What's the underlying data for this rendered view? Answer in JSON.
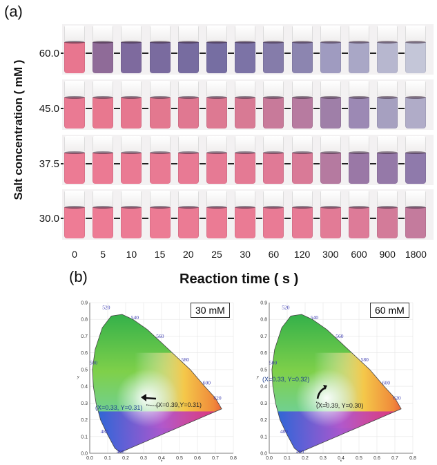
{
  "panel_a_label": "(a)",
  "panel_b_label": "(b)",
  "y_axis_label": "Salt concentration ( mM )",
  "x_axis_label": "Reaction time ( s )",
  "concentrations": [
    "60.0",
    "45.0",
    "37.5",
    "30.0"
  ],
  "times": [
    "0",
    "5",
    "10",
    "15",
    "20",
    "25",
    "30",
    "60",
    "120",
    "300",
    "600",
    "900",
    "1800"
  ],
  "vial_colors": [
    [
      "#e8768f",
      "#8f6b98",
      "#7e6a9e",
      "#7a6b9f",
      "#776ca0",
      "#766ea2",
      "#7c73a6",
      "#857caa",
      "#8c85b0",
      "#9f9bc0",
      "#a9a7c6",
      "#b7b7cf",
      "#c4c6d8"
    ],
    [
      "#ea7a93",
      "#e8788f",
      "#e6778f",
      "#e3788f",
      "#e07891",
      "#dd7992",
      "#d87a94",
      "#c87a9a",
      "#b77ba0",
      "#9f7fa8",
      "#9c89b4",
      "#a6a0c0",
      "#b0acc8"
    ],
    [
      "#ec7b94",
      "#eb7a93",
      "#ea7a93",
      "#e97a93",
      "#e87a94",
      "#e67a94",
      "#e47a94",
      "#e07a96",
      "#d97a97",
      "#b57aa0",
      "#9a78a6",
      "#9579a8",
      "#8f7aab"
    ],
    [
      "#ee7c95",
      "#ed7b94",
      "#ec7b94",
      "#ec7b94",
      "#eb7b94",
      "#eb7b94",
      "#ea7b94",
      "#e97b95",
      "#e77b95",
      "#e27b96",
      "#dd7b98",
      "#d37b99",
      "#c47b9d"
    ]
  ],
  "cie_left": {
    "box_label": "30 mM",
    "coord_start": "(X=0.33, Y=0.31)",
    "coord_end": "(X=0.39,Y=0.31)"
  },
  "cie_right": {
    "box_label": "60 mM",
    "coord_start": "(X=0.33, Y=0.32)",
    "coord_end": "(X=0.39, Y=0.30)"
  },
  "cie_axis": {
    "x_ticks": [
      "0.0",
      "0.1",
      "0.2",
      "0.3",
      "0.4",
      "0.5",
      "0.6",
      "0.7",
      "0.8"
    ],
    "y_ticks": [
      "0.0",
      "0.1",
      "0.2",
      "0.3",
      "0.4",
      "0.5",
      "0.6",
      "0.7",
      "0.8",
      "0.9"
    ],
    "x_label": "x",
    "y_label": "y",
    "wavelengths": [
      "460",
      "480",
      "500",
      "520",
      "540",
      "560",
      "580",
      "600",
      "620"
    ]
  }
}
